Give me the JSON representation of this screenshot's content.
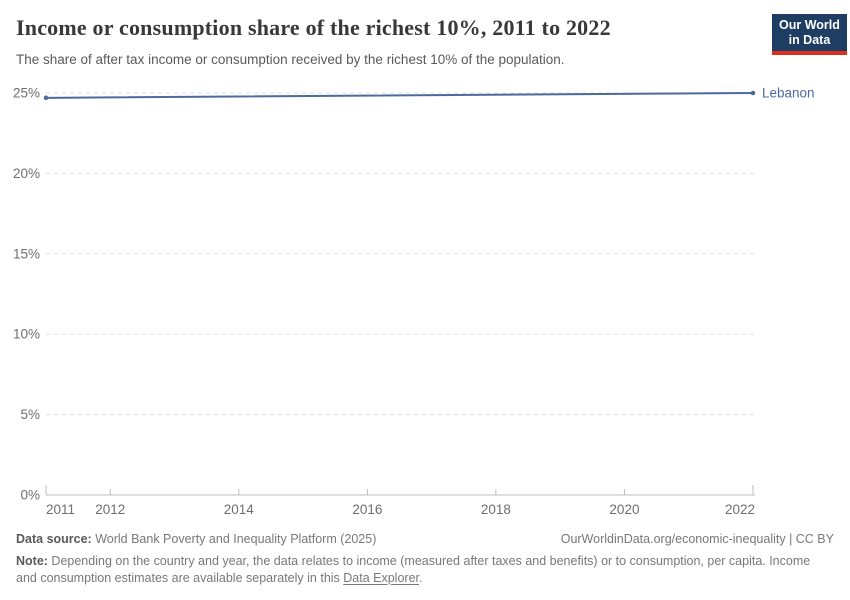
{
  "header": {
    "title": "Income or consumption share of the richest 10%, 2011 to 2022",
    "subtitle": "The share of after tax income or consumption received by the richest 10% of the population.",
    "logo": {
      "line1": "Our World",
      "line2": "in Data",
      "bg_color": "#1d3d63",
      "bar_color": "#dc2d1d"
    }
  },
  "chart_data": {
    "type": "line",
    "title": "Income or consumption share of the richest 10%, 2011 to 2022",
    "series": [
      {
        "name": "Lebanon",
        "color": "#4c6a9c",
        "x": [
          2011,
          2022
        ],
        "values": [
          24.7,
          25.0
        ],
        "end_markers": true
      }
    ],
    "xlabel": "",
    "ylabel": "",
    "xlim": [
      2011,
      2022
    ],
    "ylim": [
      0,
      25
    ],
    "xticks": [
      2011,
      2012,
      2014,
      2016,
      2018,
      2020,
      2022
    ],
    "yticks": [
      0,
      5,
      10,
      15,
      20,
      25
    ],
    "ytick_suffix": "%",
    "grid": "horizontal-dashed",
    "legend_position": "line-end-label",
    "colors": {
      "gridline": "#e0e0e0",
      "axis_line": "#bdbdbd",
      "axis_text": "#6e6e6e"
    }
  },
  "footer": {
    "source_label": "Data source:",
    "source_text": " World Bank Poverty and Inequality Platform (2025)",
    "rights": "OurWorldinData.org/economic-inequality | CC BY",
    "note_label": "Note:",
    "note_text": " Depending on the country and year, the data relates to income (measured after taxes and benefits) or to consumption, per capita. Income and consumption estimates are available separately in this ",
    "note_link": "Data Explorer",
    "note_after": "."
  }
}
